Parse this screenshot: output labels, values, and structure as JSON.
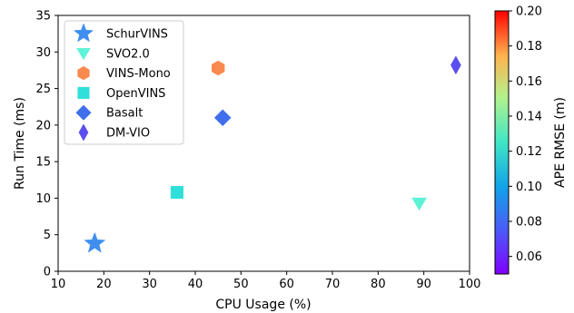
{
  "chart_data": {
    "type": "scatter",
    "xlabel": "CPU Usage (%)",
    "ylabel": "Run Time (ms)",
    "xlim": [
      10,
      100
    ],
    "ylim": [
      0,
      35
    ],
    "x_ticks": [
      "10",
      "20",
      "30",
      "40",
      "50",
      "60",
      "70",
      "80",
      "90",
      "100"
    ],
    "y_ticks": [
      "0",
      "5",
      "10",
      "15",
      "20",
      "25",
      "30",
      "35"
    ],
    "grid": false,
    "legend_position": "top-left",
    "colorbar": {
      "label": "APE RMSE (m)",
      "range": [
        0.05,
        0.2
      ],
      "ticks": [
        "0.06",
        "0.08",
        "0.10",
        "0.12",
        "0.14",
        "0.16",
        "0.18",
        "0.20"
      ],
      "colormap": "rainbow"
    },
    "series": [
      {
        "name": "SchurVINS",
        "marker": "star",
        "x": 18,
        "y": 3.8,
        "color": "#3f8ef0"
      },
      {
        "name": "SVO2.0",
        "marker": "triangle-down",
        "x": 89,
        "y": 9.3,
        "color": "#5ef2d6"
      },
      {
        "name": "VINS-Mono",
        "marker": "hexagon",
        "x": 45,
        "y": 27.8,
        "color": "#f98a4f"
      },
      {
        "name": "OpenVINS",
        "marker": "square",
        "x": 36,
        "y": 10.8,
        "color": "#2fe0da"
      },
      {
        "name": "Basalt",
        "marker": "diamond",
        "x": 46,
        "y": 21,
        "color": "#3f6fec"
      },
      {
        "name": "DM-VIO",
        "marker": "thin-diamond",
        "x": 97,
        "y": 28.2,
        "color": "#5b4ef0"
      }
    ]
  }
}
